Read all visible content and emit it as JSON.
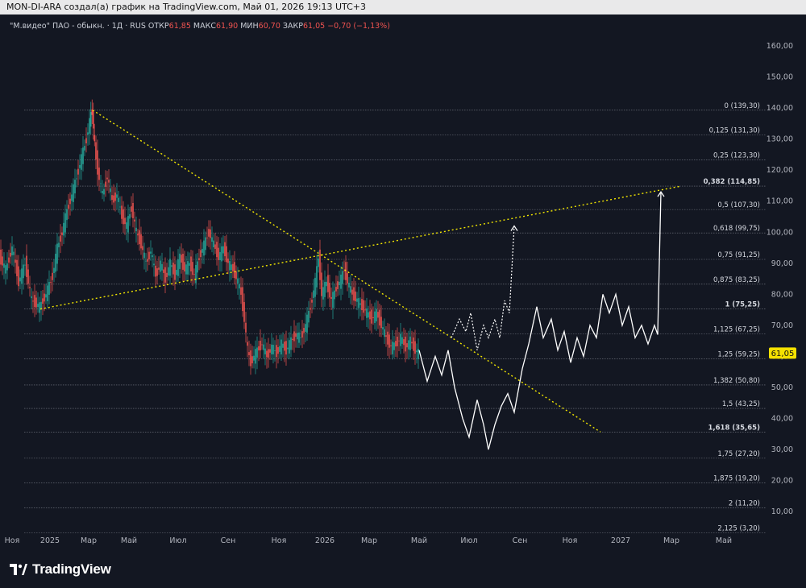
{
  "header": {
    "caption": "MON-DI-ARA создал(а) график на TradingView.com, Май 01, 2026 19:13 UTC+3"
  },
  "legend": {
    "symbol": "\"М.видео\" ПАО - обыкн. · 1Д · RUS",
    "open_label": "ОТКР",
    "open": "61,85",
    "high_label": "МАКС",
    "high": "61,90",
    "low_label": "МИН",
    "low": "60,70",
    "close_label": "ЗАКР",
    "close": "61,05",
    "change": "−0,70 (−1,13%)"
  },
  "brand": {
    "name": "TradingView"
  },
  "colors": {
    "background": "#131722",
    "up": "#26a69a",
    "down": "#ef5350",
    "trendline": "#f2e600",
    "projection": "#ffffff",
    "price_tag": "#f5e100"
  },
  "chart_data": {
    "type": "candlestick",
    "symbol": "\"М.видео\" ПАО - обыкн.",
    "timeframe": "1Д",
    "y_axis": {
      "range": [
        5,
        165
      ],
      "ticks": [
        "160,00",
        "150,00",
        "140,00",
        "130,00",
        "120,00",
        "110,00",
        "100,00",
        "90,00",
        "80,00",
        "70,00",
        "60,00",
        "50,00",
        "40,00",
        "30,00",
        "20,00",
        "10,00"
      ]
    },
    "x_axis": {
      "ticks": [
        "Ноя",
        "2025",
        "Мар",
        "Май",
        "Июл",
        "Сен",
        "Ноя",
        "2026",
        "Мар",
        "Май",
        "Июл",
        "Сен",
        "Ноя",
        "2027",
        "Мар",
        "Май"
      ]
    },
    "last_price": "61,05",
    "fibonacci": [
      {
        "level": "0",
        "price": "139,30",
        "v": 139.3
      },
      {
        "level": "0,125",
        "price": "131,30",
        "v": 131.3
      },
      {
        "level": "0,25",
        "price": "123,30",
        "v": 123.3
      },
      {
        "level": "0,382",
        "price": "114,85",
        "v": 114.85,
        "bold": true
      },
      {
        "level": "0,5",
        "price": "107,30",
        "v": 107.3
      },
      {
        "level": "0,618",
        "price": "99,75",
        "v": 99.75
      },
      {
        "level": "0,75",
        "price": "91,25",
        "v": 91.25
      },
      {
        "level": "0,875",
        "price": "83,25",
        "v": 83.25
      },
      {
        "level": "1",
        "price": "75,25",
        "v": 75.25,
        "bold": true
      },
      {
        "level": "1,125",
        "price": "67,25",
        "v": 67.25
      },
      {
        "level": "1,25",
        "price": "59,25",
        "v": 59.25
      },
      {
        "level": "1,382",
        "price": "50,80",
        "v": 50.8
      },
      {
        "level": "1,5",
        "price": "43,25",
        "v": 43.25
      },
      {
        "level": "1,618",
        "price": "35,65",
        "v": 35.65,
        "bold": true
      },
      {
        "level": "1,75",
        "price": "27,20",
        "v": 27.2
      },
      {
        "level": "1,875",
        "price": "19,20",
        "v": 19.2
      },
      {
        "level": "2",
        "price": "11,20",
        "v": 11.2
      },
      {
        "level": "2,125",
        "price": "3,20",
        "v": 3.2
      }
    ],
    "price_path": [
      [
        0,
        92
      ],
      [
        8,
        88
      ],
      [
        16,
        95
      ],
      [
        24,
        84
      ],
      [
        32,
        90
      ],
      [
        40,
        78
      ],
      [
        50,
        76
      ],
      [
        58,
        80
      ],
      [
        66,
        86
      ],
      [
        72,
        95
      ],
      [
        78,
        100
      ],
      [
        84,
        107
      ],
      [
        90,
        112
      ],
      [
        96,
        118
      ],
      [
        102,
        124
      ],
      [
        108,
        130
      ],
      [
        112,
        136
      ],
      [
        115,
        139
      ],
      [
        118,
        128
      ],
      [
        122,
        120
      ],
      [
        128,
        112
      ],
      [
        134,
        118
      ],
      [
        140,
        110
      ],
      [
        146,
        112
      ],
      [
        152,
        105
      ],
      [
        158,
        102
      ],
      [
        164,
        108
      ],
      [
        170,
        100
      ],
      [
        176,
        96
      ],
      [
        182,
        90
      ],
      [
        188,
        94
      ],
      [
        194,
        86
      ],
      [
        200,
        90
      ],
      [
        206,
        85
      ],
      [
        212,
        90
      ],
      [
        218,
        86
      ],
      [
        224,
        92
      ],
      [
        230,
        88
      ],
      [
        236,
        90
      ],
      [
        242,
        86
      ],
      [
        248,
        92
      ],
      [
        254,
        96
      ],
      [
        260,
        100
      ],
      [
        266,
        96
      ],
      [
        272,
        92
      ],
      [
        278,
        95
      ],
      [
        284,
        90
      ],
      [
        290,
        88
      ],
      [
        296,
        84
      ],
      [
        300,
        80
      ],
      [
        304,
        72
      ],
      [
        308,
        62
      ],
      [
        312,
        58
      ],
      [
        316,
        60
      ],
      [
        320,
        62
      ],
      [
        326,
        64
      ],
      [
        332,
        60
      ],
      [
        338,
        63
      ],
      [
        344,
        61
      ],
      [
        350,
        64
      ],
      [
        356,
        62
      ],
      [
        362,
        65
      ],
      [
        368,
        67
      ],
      [
        374,
        66
      ],
      [
        380,
        70
      ],
      [
        386,
        76
      ],
      [
        392,
        84
      ],
      [
        396,
        92
      ],
      [
        400,
        80
      ],
      [
        406,
        84
      ],
      [
        412,
        78
      ],
      [
        418,
        82
      ],
      [
        424,
        85
      ],
      [
        428,
        88
      ],
      [
        432,
        84
      ],
      [
        438,
        80
      ],
      [
        444,
        78
      ],
      [
        450,
        76
      ],
      [
        456,
        74
      ],
      [
        462,
        72
      ],
      [
        468,
        74
      ],
      [
        474,
        70
      ],
      [
        480,
        66
      ],
      [
        486,
        63
      ],
      [
        492,
        64
      ],
      [
        498,
        66
      ],
      [
        504,
        63
      ],
      [
        510,
        65
      ],
      [
        516,
        62
      ],
      [
        520,
        61
      ]
    ],
    "projection_main": [
      [
        520,
        62
      ],
      [
        530,
        52
      ],
      [
        540,
        60
      ],
      [
        548,
        54
      ],
      [
        556,
        62
      ],
      [
        564,
        50
      ],
      [
        574,
        40
      ],
      [
        582,
        34
      ],
      [
        592,
        46
      ],
      [
        600,
        38
      ],
      [
        606,
        30
      ],
      [
        614,
        38
      ],
      [
        622,
        44
      ],
      [
        630,
        48
      ],
      [
        638,
        42
      ],
      [
        648,
        56
      ],
      [
        656,
        64
      ],
      [
        666,
        76
      ],
      [
        674,
        66
      ],
      [
        684,
        72
      ],
      [
        692,
        62
      ],
      [
        700,
        68
      ],
      [
        708,
        58
      ],
      [
        716,
        66
      ],
      [
        724,
        60
      ],
      [
        732,
        70
      ],
      [
        740,
        66
      ],
      [
        748,
        80
      ],
      [
        756,
        74
      ],
      [
        764,
        80
      ],
      [
        772,
        70
      ],
      [
        780,
        76
      ],
      [
        788,
        66
      ],
      [
        796,
        70
      ],
      [
        804,
        64
      ],
      [
        812,
        70
      ],
      [
        816,
        67
      ],
      [
        820,
        113
      ]
    ],
    "projection_alt": [
      [
        560,
        66
      ],
      [
        570,
        72
      ],
      [
        578,
        68
      ],
      [
        584,
        74
      ],
      [
        592,
        62
      ],
      [
        600,
        70
      ],
      [
        606,
        66
      ],
      [
        614,
        72
      ],
      [
        620,
        66
      ],
      [
        626,
        78
      ],
      [
        632,
        74
      ],
      [
        638,
        102
      ]
    ],
    "trendlines": [
      {
        "from": [
          115,
          139.3
        ],
        "to": [
          745,
          35.65
        ]
      },
      {
        "from": [
          50,
          75.25
        ],
        "to": [
          845,
          114.85
        ]
      }
    ]
  }
}
